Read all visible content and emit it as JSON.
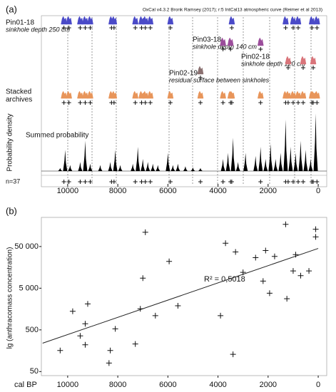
{
  "chart_data": [
    {
      "type": "density",
      "panel": "(a)",
      "source": "OxCal v4.3.2 Bronk Ramsey (2017); r:5 IntCal13 atmospheric curve (Reimer et al 2013)",
      "rows": [
        {
          "name": "Pin01-18",
          "note": "sinkhole depth 250 cm",
          "color": "#4a4ac8",
          "dates": [
            10150,
            9950,
            9500,
            9300,
            9100,
            8250,
            8150,
            7300,
            7050,
            6900,
            6700,
            5900,
            3450,
            1300,
            1000,
            800,
            250,
            50
          ]
        },
        {
          "name": "Pin03-18",
          "note": "sinkhole depth 140 cm",
          "color": "#9b4d9b",
          "dates": [
            3800,
            3500,
            2300
          ]
        },
        {
          "name": "Pin02-18",
          "note": "sinkhole depth 120 cm",
          "color": "#d9747a",
          "dates": [
            1200,
            600,
            200
          ]
        },
        {
          "name": "Pin02-19",
          "note": "residual surface between sinkholes",
          "color": "#8a7070",
          "dates": [
            4700
          ]
        }
      ],
      "stacked_label": [
        "Stacked",
        "archives"
      ],
      "stacked_color": "#e8955a",
      "summed_label": "Summed probability",
      "ylabel": "Probability density",
      "count_label": "n=37",
      "summed": {
        "x": [
          10300,
          10100,
          9900,
          9500,
          9300,
          9100,
          8700,
          8300,
          8100,
          7900,
          7400,
          7200,
          7000,
          6800,
          6600,
          6400,
          6000,
          5800,
          5600,
          5300,
          5000,
          4700,
          3800,
          3600,
          3400,
          3200,
          2900,
          2500,
          2300,
          2100,
          1900,
          1700,
          1500,
          1300,
          1100,
          900,
          700,
          500,
          300,
          100
        ],
        "density": [
          0.05,
          0.35,
          0.1,
          0.15,
          0.5,
          0.12,
          0.1,
          0.15,
          0.35,
          0.1,
          0.12,
          0.4,
          0.2,
          0.15,
          0.12,
          0.1,
          0.3,
          0.1,
          0.12,
          0.08,
          0.06,
          0.05,
          0.2,
          0.3,
          0.55,
          0.15,
          0.3,
          0.25,
          0.4,
          0.2,
          0.45,
          0.2,
          0.3,
          0.85,
          0.4,
          0.3,
          0.5,
          0.35,
          0.2,
          0.95
        ]
      },
      "xlim": [
        11050,
        -340
      ],
      "xticks": [
        10000,
        8000,
        6000,
        4000,
        2000,
        0
      ]
    },
    {
      "type": "scatter",
      "panel": "(b)",
      "ylabel": "lg (anthracomass concentration)",
      "xlabel": "cal BP",
      "annotation": "R² = 0,5018",
      "x": [
        10300,
        9800,
        9500,
        9300,
        9200,
        9300,
        8300,
        8350,
        8100,
        7300,
        7000,
        6900,
        7100,
        6500,
        5950,
        5600,
        3900,
        3700,
        3300,
        3400,
        3000,
        2500,
        2200,
        2100,
        1940,
        1740,
        1300,
        1250,
        1000,
        900,
        700,
        370,
        100,
        100
      ],
      "y": [
        160,
        1400,
        360,
        700,
        2100,
        220,
        160,
        80,
        530,
        230,
        8700,
        110000,
        1600,
        1100,
        22000,
        1900,
        1100,
        60000,
        37000,
        130,
        12000,
        27000,
        7400,
        40000,
        3800,
        29000,
        170000,
        2800,
        13000,
        32000,
        10000,
        13000,
        130000,
        85000
      ],
      "trend": {
        "x": [
          11000,
          0
        ],
        "y": [
          240,
          45000
        ]
      },
      "xlim": [
        11050,
        -340
      ],
      "xticks": [
        10000,
        8000,
        6000,
        4000,
        2000,
        0
      ],
      "ylim": [
        40,
        250000
      ],
      "yticks": [
        50,
        500,
        {
          "value": 5000,
          "label": "5 000"
        },
        {
          "value": 50000,
          "label": "50 000"
        }
      ],
      "log_y": true
    }
  ]
}
